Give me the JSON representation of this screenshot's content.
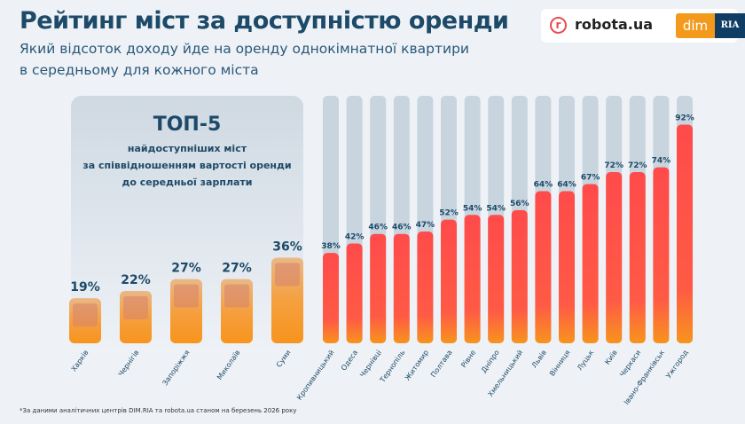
{
  "header": {
    "title": "Рейтинг міст за доступністю оренди",
    "subtitle_line1": "Який відсоток доходу йде на оренду однокімнатної квартири",
    "subtitle_line2": "в середньому для кожного міста"
  },
  "logos": {
    "robota": "robota.ua",
    "dim": "dim",
    "ria": "RIA"
  },
  "top5": {
    "heading": "ТОП-5",
    "line1": "найдоступніших міст",
    "line2": "за співвідношенням вартості оренди",
    "line3": "до середньої зарплати"
  },
  "footnote": "*За даними аналітичних центрів DIM.RIA та robota.ua станом на березень 2026 року",
  "colors": {
    "orange": "#f7941d",
    "red": "#ff4b4b",
    "track": "#c8d5df",
    "text": "#1d4a68"
  },
  "chart_data": {
    "type": "bar",
    "ylim": [
      0,
      100
    ],
    "unit": "%",
    "categories": [
      "Харків",
      "Чернігів",
      "Запоріжжя",
      "Миколаїв",
      "Суми",
      "Кропивницький",
      "Одеса",
      "Чернівці",
      "Тернопіль",
      "Житомир",
      "Полтава",
      "Рівне",
      "Дніпро",
      "Хмельницький",
      "Львів",
      "Вінниця",
      "Луцьк",
      "Київ",
      "Черкаси",
      "Івано-Франківськ",
      "Ужгород"
    ],
    "values": [
      19,
      22,
      27,
      27,
      36,
      38,
      42,
      46,
      46,
      47,
      52,
      54,
      54,
      56,
      64,
      64,
      67,
      72,
      72,
      74,
      92
    ],
    "labels": [
      "19%",
      "22%",
      "27%",
      "27%",
      "36%",
      "38%",
      "42%",
      "46%",
      "46%",
      "47%",
      "52%",
      "54%",
      "54%",
      "56%",
      "64%",
      "64%",
      "67%",
      "72%",
      "72%",
      "74%",
      "92%"
    ],
    "top5_count": 5
  }
}
